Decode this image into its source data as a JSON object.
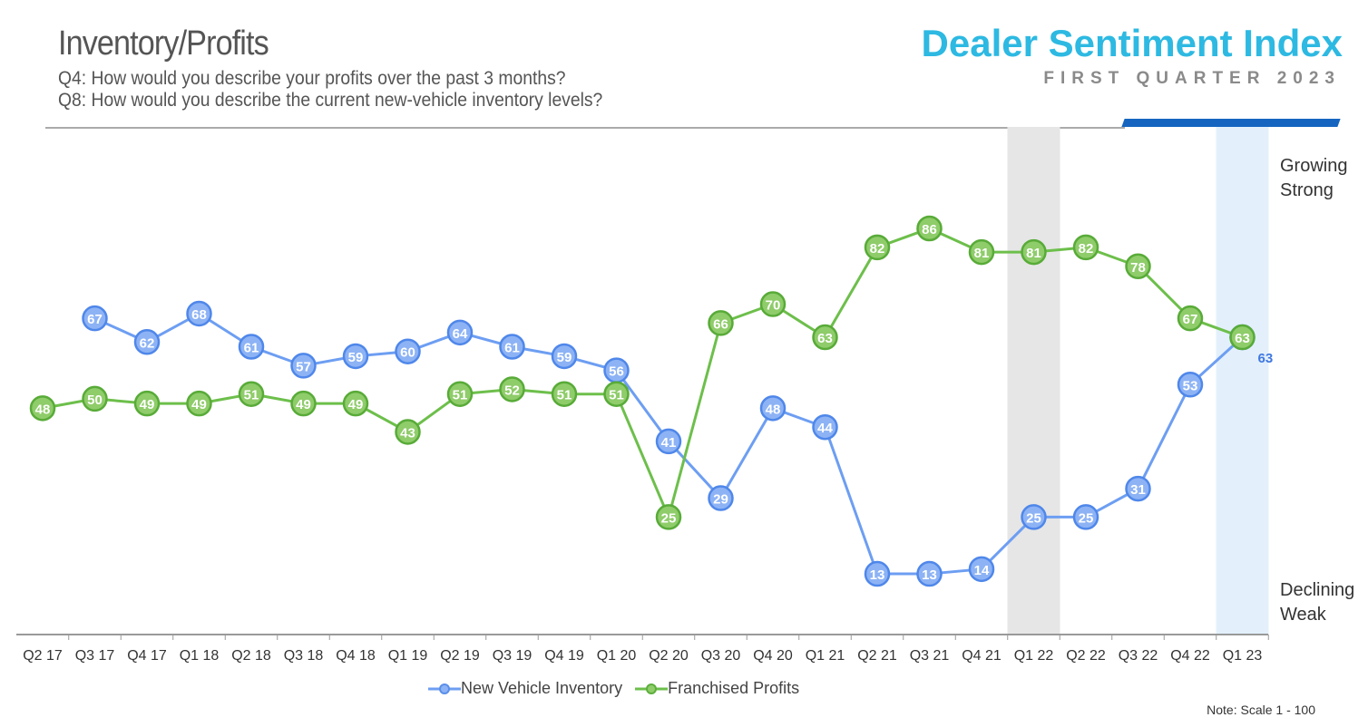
{
  "header": {
    "title": "Inventory/Profits",
    "q4": "Q4: How would you describe your profits over the past 3 months?",
    "q8": "Q8: How would you describe the current new-vehicle inventory levels?",
    "brand": "Dealer Sentiment Index",
    "subtitle": "FIRST QUARTER 2023"
  },
  "side_labels": {
    "top1": "Growing",
    "top2": "Strong",
    "bottom1": "Declining",
    "bottom2": "Weak"
  },
  "note": "Note: Scale 1 - 100",
  "chart_data": {
    "type": "line",
    "title": "Inventory/Profits",
    "xlabel": "",
    "ylabel": "",
    "ylim": [
      0,
      100
    ],
    "grid": false,
    "legend_placement": "bottom",
    "categories": [
      "Q2 17",
      "Q3 17",
      "Q4 17",
      "Q1 18",
      "Q2 18",
      "Q3 18",
      "Q4 18",
      "Q1 19",
      "Q2 19",
      "Q3 19",
      "Q4 19",
      "Q1 20",
      "Q2 20",
      "Q3 20",
      "Q4 20",
      "Q1 21",
      "Q2 21",
      "Q3 21",
      "Q4 21",
      "Q1 22",
      "Q2 22",
      "Q3 22",
      "Q4 22",
      "Q1 23"
    ],
    "highlighted_categories": [
      "Q1 22",
      "Q1 23"
    ],
    "series": [
      {
        "name": "New Vehicle Inventory",
        "color": "#6d9ef2",
        "values": [
          null,
          67,
          62,
          68,
          61,
          57,
          59,
          60,
          64,
          61,
          59,
          56,
          41,
          29,
          48,
          44,
          13,
          13,
          14,
          25,
          25,
          31,
          53,
          63
        ]
      },
      {
        "name": "Franchised Profits",
        "color": "#6dbf4b",
        "values": [
          48,
          50,
          49,
          49,
          51,
          49,
          49,
          43,
          51,
          52,
          51,
          51,
          25,
          66,
          70,
          63,
          82,
          86,
          81,
          81,
          82,
          78,
          67,
          63
        ]
      }
    ]
  }
}
